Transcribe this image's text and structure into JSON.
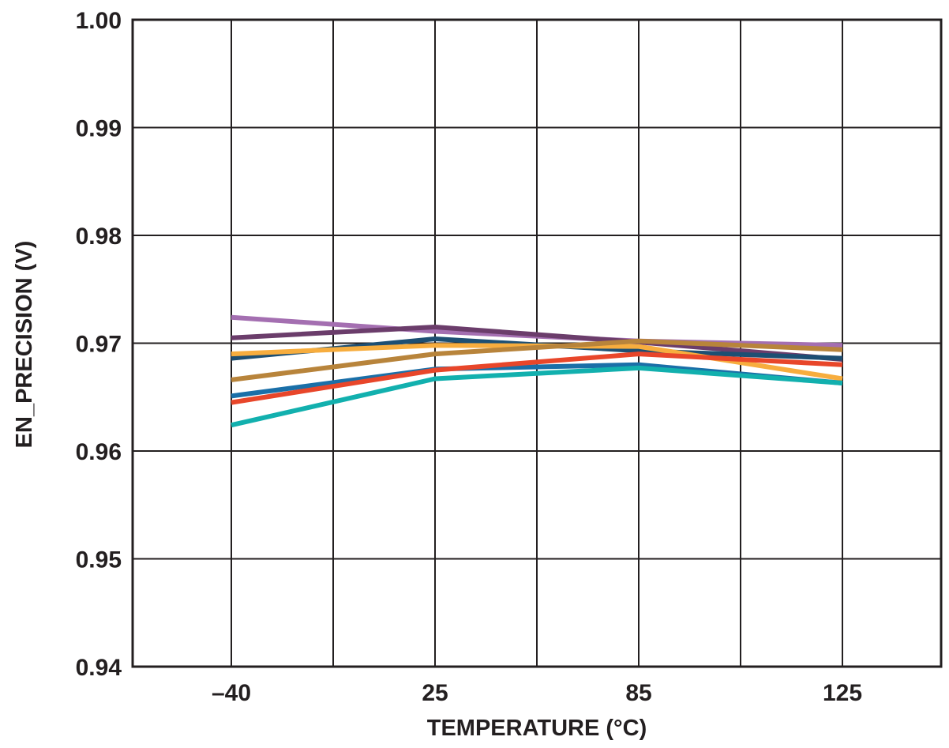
{
  "chart_data": {
    "type": "line",
    "title": "",
    "xlabel": "TEMPERATURE (°C)",
    "ylabel": "EN_PRECISION (V)",
    "x_ticks": [
      "–40",
      "25",
      "85",
      "125"
    ],
    "x": [
      -40,
      25,
      85,
      125
    ],
    "ylim": [
      0.94,
      1.0
    ],
    "y_ticks": [
      "0.94",
      "0.95",
      "0.96",
      "0.97",
      "0.98",
      "0.99",
      "1.00"
    ],
    "y_tick_values": [
      0.94,
      0.95,
      0.96,
      0.97,
      0.98,
      0.99,
      1.0
    ],
    "grid": true,
    "legend": "none",
    "series": [
      {
        "color": "#a46fb1",
        "values": [
          0.9724,
          0.9711,
          0.9702,
          0.9698
        ]
      },
      {
        "color": "#6b3d6b",
        "values": [
          0.9705,
          0.9715,
          0.9701,
          0.9685
        ]
      },
      {
        "color": "#1d4f73",
        "values": [
          0.9686,
          0.9704,
          0.9693,
          0.9686
        ]
      },
      {
        "color": "#f7ad3e",
        "values": [
          0.969,
          0.9698,
          0.9697,
          0.9667
        ]
      },
      {
        "color": "#b8843b",
        "values": [
          0.9666,
          0.969,
          0.9702,
          0.9694
        ]
      },
      {
        "color": "#1a6fa8",
        "values": [
          0.9651,
          0.9676,
          0.968,
          0.9663
        ]
      },
      {
        "color": "#e8462a",
        "values": [
          0.9645,
          0.9675,
          0.969,
          0.968
        ]
      },
      {
        "color": "#12b0ae",
        "values": [
          0.9624,
          0.9667,
          0.9677,
          0.9663
        ]
      }
    ]
  }
}
